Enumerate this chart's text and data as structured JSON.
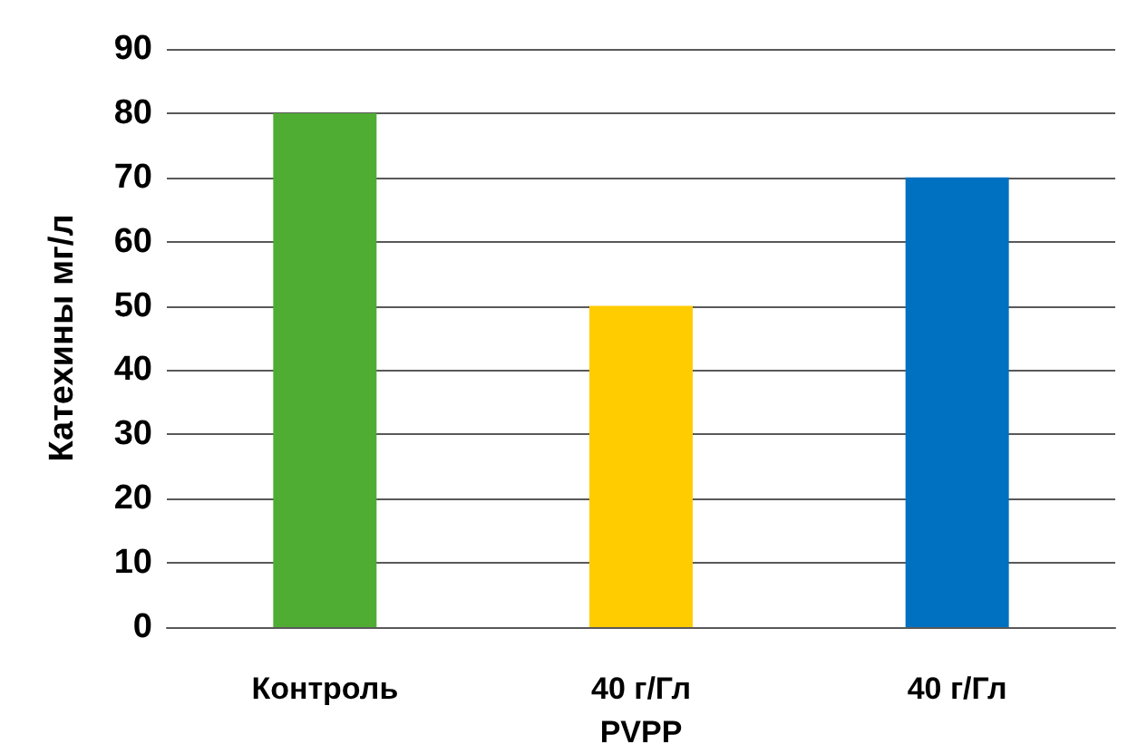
{
  "chart_data": {
    "type": "bar",
    "ylabel": "Катехины мг/л",
    "categories": [
      "Контроль",
      "40 г/Гл\nPVPP",
      "40 г/Гл"
    ],
    "values": [
      80,
      50,
      70
    ],
    "colors": [
      "#4fad33",
      "#ffcc00",
      "#0070c0"
    ],
    "ylim": [
      0,
      90
    ],
    "yticks": [
      0,
      10,
      20,
      30,
      40,
      50,
      60,
      70,
      80,
      90
    ],
    "grid": "y"
  }
}
